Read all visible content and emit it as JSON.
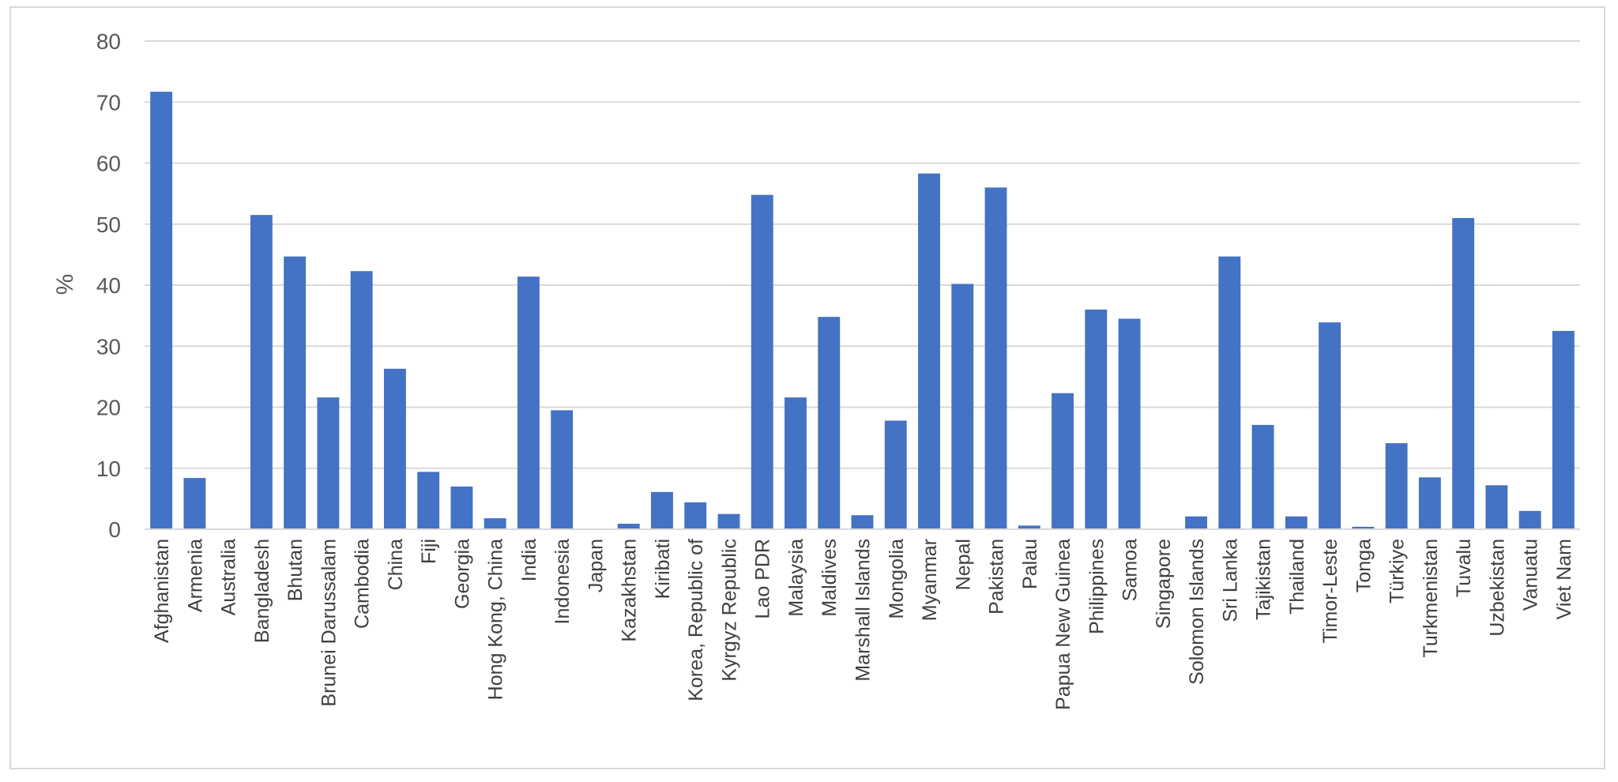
{
  "chart_data": {
    "type": "bar",
    "title": "",
    "xlabel": "",
    "ylabel": "%",
    "ylim": [
      0,
      80
    ],
    "yticks": [
      0,
      10,
      20,
      30,
      40,
      50,
      60,
      70,
      80
    ],
    "grid": true,
    "legend": "none",
    "bar_color": "#4472c4",
    "categories": [
      "Afghanistan",
      "Armenia",
      "Australia",
      "Bangladesh",
      "Bhutan",
      "Brunei Darussalam",
      "Cambodia",
      "China",
      "Fiji",
      "Georgia",
      "Hong Kong, China",
      "India",
      "Indonesia",
      "Japan",
      "Kazakhstan",
      "Kiribati",
      "Korea, Republic of",
      "Kyrgyz Republic",
      "Lao PDR",
      "Malaysia",
      "Maldives",
      "Marshall Islands",
      "Mongolia",
      "Myanmar",
      "Nepal",
      "Pakistan",
      "Palau",
      "Papua New Guinea",
      "Philippines",
      "Samoa",
      "Singapore",
      "Solomon Islands",
      "Sri Lanka",
      "Tajikistan",
      "Thailand",
      "Timor-Leste",
      "Tonga",
      "Türkiye",
      "Turkmenistan",
      "Tuvalu",
      "Uzbekistan",
      "Vanuatu",
      "Viet Nam"
    ],
    "values": [
      71.7,
      8.4,
      0,
      51.5,
      44.7,
      21.6,
      42.3,
      26.3,
      9.4,
      7.0,
      1.8,
      41.4,
      19.5,
      0,
      0.9,
      6.1,
      4.4,
      2.5,
      54.8,
      21.6,
      34.8,
      2.3,
      17.8,
      58.3,
      40.2,
      56.0,
      0.6,
      22.3,
      36.0,
      34.5,
      0,
      2.1,
      44.7,
      17.1,
      2.1,
      33.9,
      0.4,
      14.1,
      8.5,
      51.0,
      7.2,
      3.0,
      32.5
    ]
  }
}
